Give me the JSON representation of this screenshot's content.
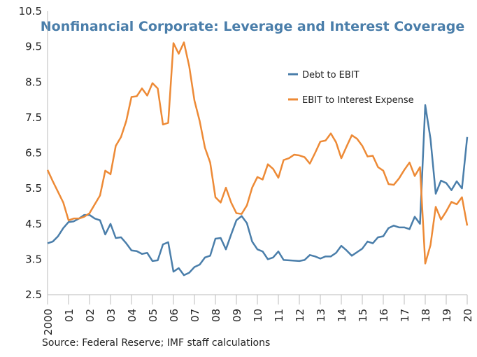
{
  "chart_data": {
    "type": "line",
    "title": "Nonfinancial Corporate: Leverage and Interest Coverage",
    "source": "Source: Federal Reserve; IMF staff calculations",
    "x": [
      2000,
      2000.25,
      2000.5,
      2000.75,
      2001,
      2001.25,
      2001.5,
      2001.75,
      2002,
      2002.25,
      2002.5,
      2002.75,
      2003,
      2003.25,
      2003.5,
      2003.75,
      2004,
      2004.25,
      2004.5,
      2004.75,
      2005,
      2005.25,
      2005.5,
      2005.75,
      2006,
      2006.25,
      2006.5,
      2006.75,
      2007,
      2007.25,
      2007.5,
      2007.75,
      2008,
      2008.25,
      2008.5,
      2008.75,
      2009,
      2009.25,
      2009.5,
      2009.75,
      2010,
      2010.25,
      2010.5,
      2010.75,
      2011,
      2011.25,
      2011.5,
      2011.75,
      2012,
      2012.25,
      2012.5,
      2012.75,
      2013,
      2013.25,
      2013.5,
      2013.75,
      2014,
      2014.25,
      2014.5,
      2014.75,
      2015,
      2015.25,
      2015.5,
      2015.75,
      2016,
      2016.25,
      2016.5,
      2016.75,
      2017,
      2017.25,
      2017.5,
      2017.75,
      2018,
      2018.25,
      2018.5,
      2018.75,
      2019,
      2019.25,
      2019.5,
      2019.75,
      2020
    ],
    "series": [
      {
        "name": "Debt to EBIT",
        "color": "#4a7eaa",
        "values": [
          3.95,
          4.0,
          4.15,
          4.38,
          4.55,
          4.57,
          4.65,
          4.75,
          4.75,
          4.65,
          4.6,
          4.2,
          4.5,
          4.1,
          4.12,
          3.95,
          3.75,
          3.73,
          3.65,
          3.68,
          3.45,
          3.47,
          3.92,
          3.98,
          3.15,
          3.25,
          3.05,
          3.12,
          3.28,
          3.35,
          3.55,
          3.6,
          4.08,
          4.1,
          3.78,
          4.2,
          4.6,
          4.72,
          4.52,
          4.0,
          3.78,
          3.72,
          3.5,
          3.55,
          3.72,
          3.48,
          3.47,
          3.46,
          3.45,
          3.48,
          3.62,
          3.58,
          3.52,
          3.58,
          3.58,
          3.68,
          3.88,
          3.75,
          3.6,
          3.7,
          3.8,
          4.0,
          3.95,
          4.12,
          4.15,
          4.38,
          4.45,
          4.4,
          4.4,
          4.35,
          4.7,
          4.5,
          7.85,
          6.9,
          5.35,
          5.72,
          5.65,
          5.45,
          5.7,
          5.5,
          6.95
        ]
      },
      {
        "name": "EBIT to Interest Expense",
        "color": "#ed8a36",
        "values": [
          6.02,
          5.7,
          5.4,
          5.1,
          4.6,
          4.65,
          4.65,
          4.7,
          4.8,
          5.05,
          5.3,
          6.0,
          5.9,
          6.7,
          6.95,
          7.4,
          8.08,
          8.1,
          8.32,
          8.12,
          8.47,
          8.32,
          7.3,
          7.35,
          9.6,
          9.3,
          9.62,
          8.95,
          7.98,
          7.4,
          6.65,
          6.23,
          5.25,
          5.1,
          5.52,
          5.1,
          4.8,
          4.78,
          5.02,
          5.52,
          5.82,
          5.75,
          6.18,
          6.05,
          5.8,
          6.3,
          6.35,
          6.45,
          6.43,
          6.38,
          6.2,
          6.5,
          6.82,
          6.85,
          7.05,
          6.8,
          6.35,
          6.68,
          7.0,
          6.9,
          6.7,
          6.4,
          6.42,
          6.1,
          6.0,
          5.62,
          5.6,
          5.78,
          6.02,
          6.23,
          5.85,
          6.1,
          3.38,
          3.9,
          4.98,
          4.62,
          4.85,
          5.12,
          5.05,
          5.25,
          4.45
        ]
      }
    ],
    "xlim": [
      2000,
      2020
    ],
    "xticks": [
      {
        "value": 2000,
        "label": "2000"
      },
      {
        "value": 2001,
        "label": "01"
      },
      {
        "value": 2002,
        "label": "02"
      },
      {
        "value": 2003,
        "label": "03"
      },
      {
        "value": 2004,
        "label": "04"
      },
      {
        "value": 2005,
        "label": "05"
      },
      {
        "value": 2006,
        "label": "06"
      },
      {
        "value": 2007,
        "label": "07"
      },
      {
        "value": 2008,
        "label": "08"
      },
      {
        "value": 2009,
        "label": "09"
      },
      {
        "value": 2010,
        "label": "10"
      },
      {
        "value": 2011,
        "label": "11"
      },
      {
        "value": 2012,
        "label": "12"
      },
      {
        "value": 2013,
        "label": "13"
      },
      {
        "value": 2014,
        "label": "14"
      },
      {
        "value": 2015,
        "label": "15"
      },
      {
        "value": 2016,
        "label": "16"
      },
      {
        "value": 2017,
        "label": "17"
      },
      {
        "value": 2018,
        "label": "18"
      },
      {
        "value": 2019,
        "label": "19"
      },
      {
        "value": 2020,
        "label": "20"
      }
    ],
    "ylim": [
      2.5,
      10.5
    ],
    "yticks": [
      2.5,
      3.5,
      4.5,
      5.5,
      6.5,
      7.5,
      8.5,
      9.5,
      10.5
    ],
    "grid": false,
    "legend": "center right"
  }
}
